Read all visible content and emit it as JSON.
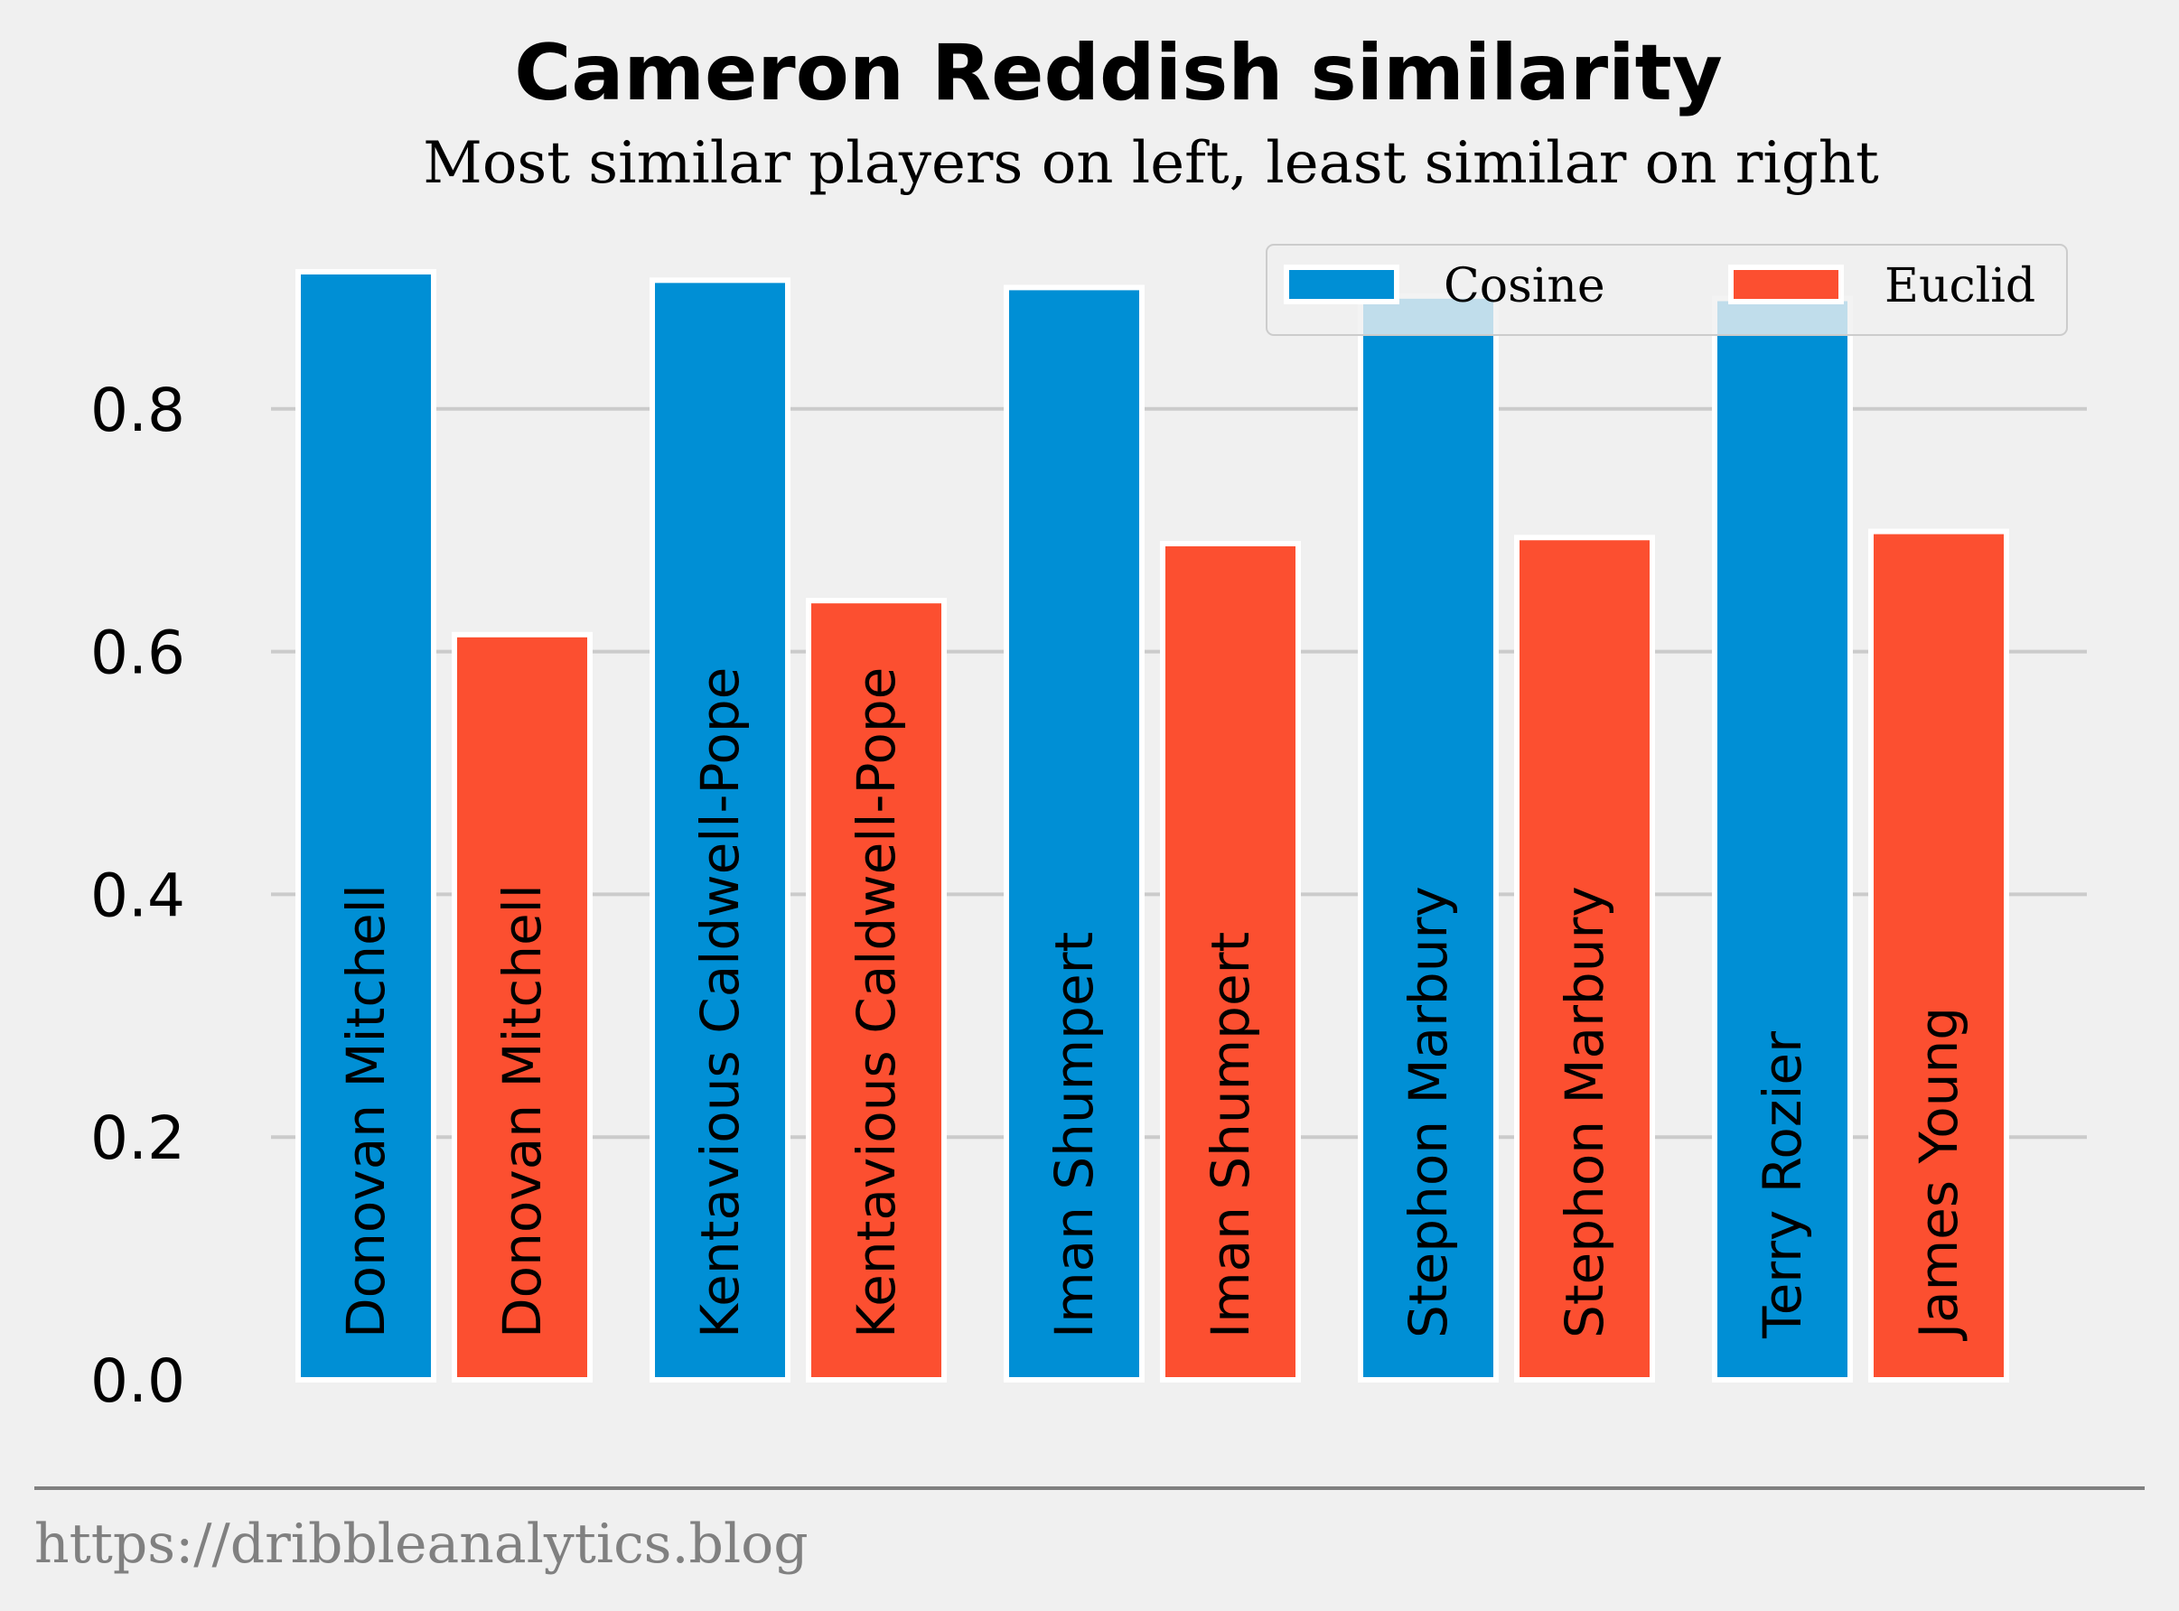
{
  "chart_data": {
    "type": "bar",
    "title": "Cameron Reddish similarity",
    "subtitle": "Most similar players on left, least similar on right",
    "xlabel": "",
    "ylabel": "",
    "ylim": [
      0,
      0.92
    ],
    "yticks": [
      0.0,
      0.2,
      0.4,
      0.6,
      0.8
    ],
    "ytick_labels": [
      "0.0",
      "0.2",
      "0.4",
      "0.6",
      "0.8"
    ],
    "grid": "horizontal",
    "legend_placement": "top-right",
    "series": [
      {
        "name": "Cosine",
        "color": "#008fd5",
        "values": [
          0.913,
          0.906,
          0.9,
          0.893,
          0.891
        ],
        "labels": [
          "Donovan Mitchell",
          "Kentavious Caldwell-Pope",
          "Iman Shumpert",
          "Stephon Marbury",
          "Terry Rozier"
        ]
      },
      {
        "name": "Euclid",
        "color": "#fc4f30",
        "values": [
          0.614,
          0.642,
          0.689,
          0.694,
          0.699
        ],
        "labels": [
          "Donovan Mitchell",
          "Kentavious Caldwell-Pope",
          "Iman Shumpert",
          "Stephon Marbury",
          "James Young"
        ]
      }
    ]
  },
  "footer": {
    "source_url": "https://dribbleanalytics.blog"
  },
  "colors": {
    "background": "#f0f0f0",
    "grid": "#cbcbcb",
    "footer_line": "#808080"
  }
}
